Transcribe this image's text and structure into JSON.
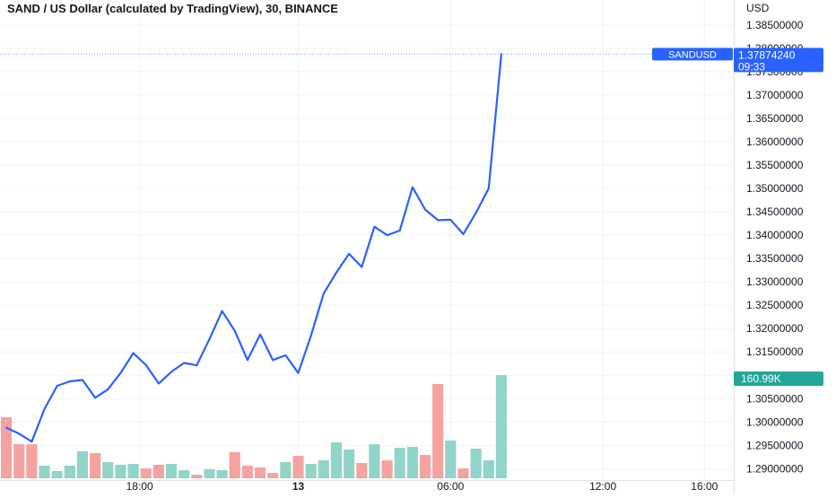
{
  "chart_data": {
    "type": "line",
    "title": "SAND / US Dollar (calculated by TradingView), 30, BINANCE",
    "currency_label": "USD",
    "series": [
      {
        "name": "SANDUSD",
        "color": "#2962ff",
        "values": [
          1.29875,
          1.2975,
          1.2958,
          1.30275,
          1.30775,
          1.3087,
          1.309,
          1.3052,
          1.307,
          1.3105,
          1.31475,
          1.3122,
          1.30825,
          1.31075,
          1.31265,
          1.31215,
          1.31775,
          1.32375,
          1.3195,
          1.31325,
          1.31875,
          1.31325,
          1.3143,
          1.3105,
          1.3185,
          1.3275,
          1.332,
          1.336,
          1.3332,
          1.3418,
          1.34,
          1.341,
          1.35025,
          1.3455,
          1.3432,
          1.3433,
          1.3402,
          1.3448,
          1.35,
          1.37874
        ]
      }
    ],
    "volume": {
      "values": [
        68,
        38,
        38,
        14,
        8,
        14,
        30,
        28,
        18,
        15,
        16,
        11,
        15,
        16,
        9,
        4,
        10,
        9,
        29,
        14,
        12,
        6,
        18,
        25,
        16,
        20,
        40,
        32,
        17,
        38,
        20,
        34,
        35,
        26,
        105,
        42,
        11,
        33,
        20,
        115
      ],
      "directions": [
        "down",
        "down",
        "down",
        "up",
        "up",
        "up",
        "up",
        "down",
        "up",
        "up",
        "up",
        "down",
        "down",
        "up",
        "up",
        "down",
        "up",
        "up",
        "down",
        "down",
        "down",
        "down",
        "up",
        "down",
        "up",
        "up",
        "up",
        "up",
        "down",
        "up",
        "down",
        "up",
        "up",
        "down",
        "down",
        "up",
        "down",
        "up",
        "up",
        "up"
      ],
      "up_color": "#91d4ca",
      "down_color": "#f5a3a1"
    },
    "ylim": [
      1.287,
      1.389
    ],
    "yticks": [
      "1.38500000",
      "1.38000000",
      "1.37500000",
      "1.37000000",
      "1.36500000",
      "1.36000000",
      "1.35500000",
      "1.35000000",
      "1.34500000",
      "1.34000000",
      "1.33500000",
      "1.33000000",
      "1.32500000",
      "1.32000000",
      "1.31500000",
      "1.31000000",
      "1.30500000",
      "1.30000000",
      "1.29500000",
      "1.29000000"
    ],
    "ytick_values": [
      1.385,
      1.38,
      1.375,
      1.37,
      1.365,
      1.36,
      1.355,
      1.35,
      1.345,
      1.34,
      1.335,
      1.33,
      1.325,
      1.32,
      1.315,
      1.31,
      1.305,
      1.3,
      1.295,
      1.29
    ],
    "xticks": [
      {
        "label": "18:00",
        "bar": 10.5
      },
      {
        "label": "13",
        "bar": 23
      },
      {
        "label": "06:00",
        "bar": 35
      },
      {
        "label": "12:00",
        "bar": 47
      },
      {
        "label": "16:00",
        "bar": 55
      }
    ],
    "bars_visible": 58,
    "last_price": {
      "label": "SANDUSD",
      "value": "1.37874240",
      "countdown": "09:33",
      "color": "#2962ff"
    },
    "volume_label": {
      "text": "160.99K",
      "color": "#26a69a"
    },
    "grid": true
  }
}
